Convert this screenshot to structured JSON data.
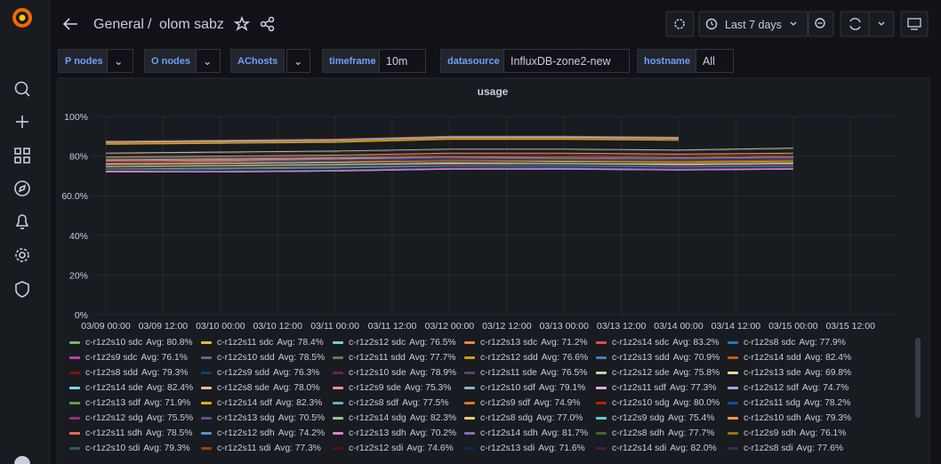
{
  "header": {
    "folder": "General",
    "separator": "/",
    "dashboard": "olom sabz"
  },
  "toolbar": {
    "time_range": "Last 7 days"
  },
  "variables": [
    {
      "label": "P nodes"
    },
    {
      "label": "O nodes"
    },
    {
      "label": "AChosts"
    },
    {
      "label": "timeframe",
      "value": "10m"
    },
    {
      "label": "datasource",
      "value": "InfluxDB-zone2-new"
    },
    {
      "label": "hostname",
      "value": "All"
    }
  ],
  "chart_data": {
    "type": "line",
    "title": "usage",
    "x": [
      "03/09 00:00",
      "03/10 00:00",
      "03/11 00:00",
      "03/12 00:00",
      "03/13 00:00",
      "03/14 00:00",
      "03/15 00:00"
    ],
    "xticks": [
      "03/09 00:00",
      "03/09 12:00",
      "03/10 00:00",
      "03/10 12:00",
      "03/11 00:00",
      "03/11 12:00",
      "03/12 00:00",
      "03/12 12:00",
      "03/13 00:00",
      "03/13 12:00",
      "03/14 00:00",
      "03/14 12:00",
      "03/15 00:00",
      "03/15 12:00"
    ],
    "ylim": [
      0,
      100
    ],
    "yticks": [
      {
        "value": 0,
        "label": "0%"
      },
      {
        "value": 20,
        "label": "20%"
      },
      {
        "value": 40,
        "label": "40%"
      },
      {
        "value": 60,
        "label": "60.0%"
      },
      {
        "value": 80,
        "label": "80%"
      },
      {
        "value": 100,
        "label": "100%"
      }
    ],
    "grid": true,
    "series": [
      {
        "name": "c-r1z2s10 sdc",
        "avg_label": "Avg: 80.8%",
        "color": "#7EB26D",
        "values": [
          79.5,
          80,
          80.5,
          81.5,
          81.5,
          81,
          81.5
        ]
      },
      {
        "name": "c-r1z2s11 sdc",
        "avg_label": "Avg: 78.4%",
        "color": "#EAB839",
        "values": [
          77.5,
          78,
          78,
          79,
          79,
          78.5,
          79
        ]
      },
      {
        "name": "c-r1z2s12 sdc",
        "avg_label": "Avg: 76.5%",
        "color": "#6ED0E0",
        "values": [
          75.5,
          76,
          76.5,
          77,
          77,
          76.5,
          77
        ]
      },
      {
        "name": "c-r1z2s13 sdc",
        "avg_label": "Avg: 71.2%",
        "color": "#EF843C",
        "values": [
          72.5,
          73,
          73.5,
          74.5,
          74.5,
          74,
          74.5
        ]
      },
      {
        "name": "c-r1z2s14 sdc",
        "avg_label": "Avg: 83.2%",
        "color": "#E24D42",
        "values": [
          87.5,
          88,
          88.5,
          90,
          90,
          89.5,
          null
        ]
      },
      {
        "name": "c-r1z2s8 sdc",
        "avg_label": "Avg: 77.9%",
        "color": "#1F78C1",
        "values": [
          77,
          77.5,
          78,
          78.5,
          78.5,
          78,
          78.5
        ]
      },
      {
        "name": "c-r1z2s9 sdc",
        "avg_label": "Avg: 76.1%",
        "color": "#BA43A9",
        "values": [
          75,
          75.5,
          76,
          77,
          76.5,
          76,
          76.5
        ]
      },
      {
        "name": "c-r1z2s10 sdd",
        "avg_label": "Avg: 78.5%",
        "color": "#705DA0",
        "values": [
          77.5,
          78,
          78.5,
          79.5,
          79,
          79,
          79.5
        ]
      },
      {
        "name": "c-r1z2s11 sdd",
        "avg_label": "Avg: 77.7%",
        "color": "#508642",
        "values": [
          77,
          77,
          77.5,
          78.5,
          78.5,
          78,
          78.5
        ]
      },
      {
        "name": "c-r1z2s12 sdd",
        "avg_label": "Avg: 76.6%",
        "color": "#CCA300",
        "values": [
          75.5,
          76,
          76.5,
          77.5,
          77,
          77,
          77.5
        ]
      },
      {
        "name": "c-r1z2s13 sdd",
        "avg_label": "Avg: 70.9%",
        "color": "#447EBC",
        "values": [
          72,
          72.5,
          73,
          74,
          74,
          73.5,
          74
        ]
      },
      {
        "name": "c-r1z2s14 sdd",
        "avg_label": "Avg: 82.4%",
        "color": "#C15C17",
        "values": [
          86.5,
          87,
          87.5,
          89,
          89,
          88.5,
          null
        ]
      },
      {
        "name": "c-r1z2s8 sdd",
        "avg_label": "Avg: 79.3%",
        "color": "#890F02",
        "values": [
          78.5,
          79,
          79.5,
          80,
          80,
          79.5,
          80
        ]
      },
      {
        "name": "c-r1z2s9 sdd",
        "avg_label": "Avg: 76.3%",
        "color": "#0A437C",
        "values": [
          75.5,
          76,
          76.5,
          77,
          77,
          76.5,
          77
        ]
      },
      {
        "name": "c-r1z2s10 sde",
        "avg_label": "Avg: 78.9%",
        "color": "#6D1F62",
        "values": [
          78,
          78.5,
          79,
          79.5,
          79.5,
          79,
          80
        ]
      },
      {
        "name": "c-r1z2s11 sde",
        "avg_label": "Avg: 76.5%",
        "color": "#584477",
        "values": [
          75.5,
          76,
          76.5,
          77.5,
          77,
          76.5,
          77
        ]
      },
      {
        "name": "c-r1z2s12 sde",
        "avg_label": "Avg: 75.8%",
        "color": "#B7DBAB",
        "values": [
          75,
          75.5,
          76,
          76.5,
          76.5,
          76,
          76.5
        ]
      },
      {
        "name": "c-r1z2s13 sde",
        "avg_label": "Avg: 69.8%",
        "color": "#F4D598",
        "values": [
          72,
          72,
          72.5,
          73.5,
          73.5,
          73,
          73.5
        ]
      },
      {
        "name": "c-r1z2s14 sde",
        "avg_label": "Avg: 82.4%",
        "color": "#70DBED",
        "values": [
          87,
          87.5,
          88,
          89.5,
          89.5,
          89,
          null
        ]
      },
      {
        "name": "c-r1z2s8 sde",
        "avg_label": "Avg: 78.0%",
        "color": "#F9BA8F",
        "values": [
          77,
          77.5,
          78,
          79,
          78.5,
          78.5,
          79
        ]
      },
      {
        "name": "c-r1z2s9 sde",
        "avg_label": "Avg: 75.3%",
        "color": "#F29191",
        "values": [
          74.5,
          75,
          75.5,
          76,
          76,
          75.5,
          76
        ]
      },
      {
        "name": "c-r1z2s10 sdf",
        "avg_label": "Avg: 79.1%",
        "color": "#82B5D8",
        "values": [
          78,
          78.5,
          79,
          80,
          80,
          79.5,
          80
        ]
      },
      {
        "name": "c-r1z2s11 sdf",
        "avg_label": "Avg: 77.3%",
        "color": "#E5A8E2",
        "values": [
          76.5,
          77,
          77.5,
          78,
          78,
          77.5,
          78
        ]
      },
      {
        "name": "c-r1z2s12 sdf",
        "avg_label": "Avg: 74.7%",
        "color": "#AEA2E0",
        "values": [
          74,
          74.5,
          75,
          75.5,
          75.5,
          75,
          75.5
        ]
      },
      {
        "name": "c-r1z2s13 sdf",
        "avg_label": "Avg: 71.9%",
        "color": "#629E51",
        "values": [
          73,
          73.5,
          74,
          75,
          74.5,
          74.5,
          75
        ]
      },
      {
        "name": "c-r1z2s14 sdf",
        "avg_label": "Avg: 82.3%",
        "color": "#E5AC0E",
        "values": [
          86,
          86.5,
          87,
          88.5,
          88.5,
          88,
          null
        ]
      },
      {
        "name": "c-r1z2s8 sdf",
        "avg_label": "Avg: 77.5%",
        "color": "#64B0C8",
        "values": [
          76.5,
          77,
          77.5,
          78.5,
          78,
          78,
          78.5
        ]
      },
      {
        "name": "c-r1z2s9 sdf",
        "avg_label": "Avg: 74.9%",
        "color": "#E0752D",
        "values": [
          74,
          74.5,
          75,
          75.5,
          75.5,
          75,
          75.5
        ]
      },
      {
        "name": "c-r1z2s10 sdg",
        "avg_label": "Avg: 80.0%",
        "color": "#BF1B00",
        "values": [
          79,
          79.5,
          80,
          81,
          81,
          80.5,
          81
        ]
      },
      {
        "name": "c-r1z2s11 sdg",
        "avg_label": "Avg: 78.2%",
        "color": "#0A50A1",
        "values": [
          77.5,
          78,
          78,
          79,
          79,
          78.5,
          79
        ]
      },
      {
        "name": "c-r1z2s12 sdg",
        "avg_label": "Avg: 75.5%",
        "color": "#962D82",
        "values": [
          74.5,
          75,
          75.5,
          76.5,
          76,
          76,
          76.5
        ]
      },
      {
        "name": "c-r1z2s13 sdg",
        "avg_label": "Avg: 70.5%",
        "color": "#614D93",
        "values": [
          72,
          72.5,
          73,
          74,
          73.5,
          73.5,
          74
        ]
      },
      {
        "name": "c-r1z2s14 sdg",
        "avg_label": "Avg: 82.3%",
        "color": "#9AC48A",
        "values": [
          81.5,
          82,
          82.5,
          83.5,
          83.5,
          83,
          84
        ]
      },
      {
        "name": "c-r1z2s8 sdg",
        "avg_label": "Avg: 77.0%",
        "color": "#F2C96D",
        "values": [
          76,
          76.5,
          77,
          78,
          77.5,
          77.5,
          78
        ]
      },
      {
        "name": "c-r1z2s9 sdg",
        "avg_label": "Avg: 75.4%",
        "color": "#65C5DB",
        "values": [
          74.5,
          75,
          75.5,
          76.5,
          76,
          76,
          76.5
        ]
      },
      {
        "name": "c-r1z2s10 sdh",
        "avg_label": "Avg: 79.3%",
        "color": "#F9934E",
        "values": [
          78.5,
          79,
          79.5,
          80,
          80,
          79.5,
          80
        ]
      },
      {
        "name": "c-r1z2s11 sdh",
        "avg_label": "Avg: 78.5%",
        "color": "#EA6460",
        "values": [
          77.5,
          78,
          78.5,
          79.5,
          79,
          79,
          79.5
        ]
      },
      {
        "name": "c-r1z2s12 sdh",
        "avg_label": "Avg: 74.2%",
        "color": "#5195CE",
        "values": [
          73.5,
          74,
          74.5,
          75,
          75,
          74.5,
          75
        ]
      },
      {
        "name": "c-r1z2s13 sdh",
        "avg_label": "Avg: 70.2%",
        "color": "#D683CE",
        "values": [
          72,
          72,
          72.5,
          73.5,
          73.5,
          73,
          73.5
        ]
      },
      {
        "name": "c-r1z2s14 sdh",
        "avg_label": "Avg: 81.7%",
        "color": "#806EB7",
        "values": [
          81,
          81.5,
          82,
          83,
          83,
          82.5,
          83.5
        ]
      },
      {
        "name": "c-r1z2s8 sdh",
        "avg_label": "Avg: 77.7%",
        "color": "#3F6833",
        "values": [
          77,
          77,
          77.5,
          78.5,
          78.5,
          78,
          78.5
        ]
      },
      {
        "name": "c-r1z2s9 sdh",
        "avg_label": "Avg: 76.1%",
        "color": "#967302",
        "values": [
          75,
          75.5,
          76,
          77,
          76.5,
          76.5,
          77
        ]
      },
      {
        "name": "c-r1z2s10 sdi",
        "avg_label": "Avg: 79.3%",
        "color": "#2F575E",
        "values": [
          78.5,
          79,
          79.5,
          80,
          80,
          79.5,
          80
        ]
      },
      {
        "name": "c-r1z2s11 sdi",
        "avg_label": "Avg: 77.3%",
        "color": "#99440A",
        "values": [
          76.5,
          77,
          77.5,
          78,
          78,
          77.5,
          78
        ]
      },
      {
        "name": "c-r1z2s12 sdi",
        "avg_label": "Avg: 74.6%",
        "color": "#58140C",
        "values": [
          74,
          74.5,
          75,
          75.5,
          75.5,
          75,
          75.5
        ]
      },
      {
        "name": "c-r1z2s13 sdi",
        "avg_label": "Avg: 71.6%",
        "color": "#052B51",
        "values": [
          73,
          73,
          73.5,
          74.5,
          74.5,
          74,
          74.5
        ]
      },
      {
        "name": "c-r1z2s14 sdi",
        "avg_label": "Avg: 82.0%",
        "color": "#511749",
        "values": [
          81,
          81.5,
          82,
          83,
          83,
          82.5,
          83.5
        ]
      },
      {
        "name": "c-r1z2s8 sdi",
        "avg_label": "Avg: 77.6%",
        "color": "#3F2B5B",
        "values": [
          77,
          77,
          77.5,
          78.5,
          78,
          78,
          78.5
        ]
      }
    ]
  }
}
